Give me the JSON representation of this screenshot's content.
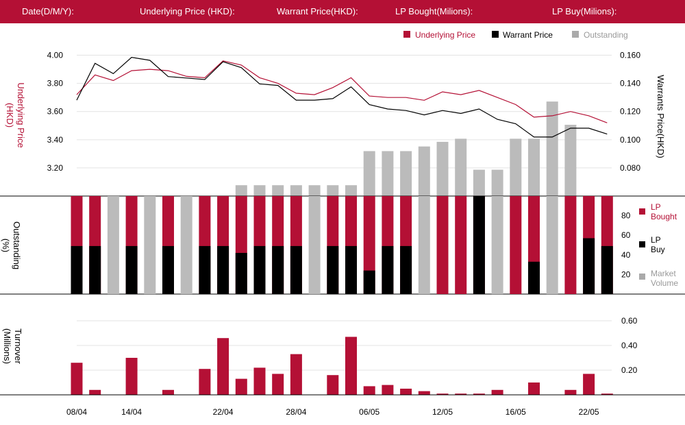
{
  "header": {
    "date_label": "Date(D/M/Y):",
    "underlying_label": "Underlying Price (HKD):",
    "warrant_label": "Warrant  Price(HKD):",
    "lp_bought_label": "LP Bought(Milions):",
    "lp_buy_label": "LP Buy(Milions):"
  },
  "legend_top": {
    "underlying": "Underlying Price",
    "warrant": "Warrant  Price",
    "outstanding": "Outstanding"
  },
  "legend_mid": {
    "lp_bought": [
      "LP",
      "Bought"
    ],
    "lp_buy": [
      "LP",
      "Buy"
    ],
    "market_volume": [
      "Market",
      "Volume"
    ]
  },
  "axis_titles": {
    "underlying": [
      "Underlying Price",
      "(HKD)"
    ],
    "warrants": "Warrants  Price(HKD)",
    "outstanding": [
      "Outstanding",
      "(%)"
    ],
    "turnover": [
      "Turnover",
      "(Millions)"
    ]
  },
  "colors": {
    "header_bg": "#b41035",
    "red": "#b41035",
    "black": "#000000",
    "gray": "#bbbbbb",
    "grid": "#e3e3e3"
  },
  "chart_data": {
    "type": "combo",
    "x_labels": [
      "08/04",
      "14/04",
      "22/04",
      "28/04",
      "06/05",
      "12/05",
      "16/05",
      "22/05"
    ],
    "x_label_positions": [
      0,
      3,
      8,
      12,
      16,
      20,
      24,
      28
    ],
    "n": 30,
    "price_panel": {
      "left_axis": {
        "title": "Underlying Price (HKD)",
        "ticks": [
          "4.00",
          "3.80",
          "3.60",
          "3.40",
          "3.20"
        ],
        "range": [
          3.0,
          4.1
        ]
      },
      "right_axis": {
        "title": "Warrants  Price(HKD)",
        "ticks": [
          "0.160",
          "0.140",
          "0.120",
          "0.100",
          "0.080"
        ],
        "range": [
          0.06,
          0.165
        ]
      },
      "series": [
        {
          "name": "Underlying Price",
          "color": "#b41035",
          "values": [
            3.72,
            3.86,
            3.82,
            3.89,
            3.9,
            3.89,
            3.85,
            3.84,
            3.96,
            3.93,
            3.84,
            3.8,
            3.73,
            3.72,
            3.77,
            3.84,
            3.71,
            3.7,
            3.7,
            3.68,
            3.74,
            3.72,
            3.75,
            3.7,
            3.65,
            3.56,
            3.57,
            3.6,
            3.57,
            3.52
          ]
        },
        {
          "name": "Warrant  Price",
          "color": "#000000",
          "values": [
            0.125,
            0.15,
            0.143,
            0.154,
            0.152,
            0.141,
            0.14,
            0.139,
            0.151,
            0.147,
            0.136,
            0.135,
            0.125,
            0.125,
            0.126,
            0.134,
            0.122,
            0.119,
            0.118,
            0.115,
            0.118,
            0.116,
            0.119,
            0.112,
            0.109,
            0.1,
            0.1,
            0.106,
            0.106,
            0.102
          ]
        }
      ],
      "outstanding_pct": [
        0,
        0,
        0,
        0,
        0,
        0,
        0,
        0,
        0,
        7,
        7,
        7,
        7,
        7,
        7,
        7,
        29,
        29,
        29,
        32,
        35,
        37,
        17,
        17,
        37,
        37,
        61,
        46,
        0,
        0
      ]
    },
    "outstanding_panel": {
      "y_ticks": [
        80,
        60,
        40,
        20
      ],
      "range": [
        0,
        100
      ],
      "lp_bought_pct": [
        100,
        100,
        0,
        100,
        0,
        100,
        0,
        100,
        100,
        100,
        100,
        100,
        100,
        0,
        100,
        100,
        100,
        100,
        100,
        0,
        100,
        100,
        100,
        0,
        100,
        100,
        0,
        100,
        100,
        100
      ],
      "lp_buy_pct": [
        49,
        49,
        0,
        49,
        0,
        49,
        0,
        49,
        49,
        42,
        49,
        49,
        49,
        0,
        49,
        49,
        24,
        49,
        49,
        0,
        0,
        0,
        100,
        0,
        0,
        33,
        0,
        0,
        57,
        49
      ],
      "market_volume_pct": [
        0,
        0,
        100,
        0,
        100,
        0,
        100,
        0,
        0,
        0,
        0,
        0,
        0,
        100,
        0,
        0,
        0,
        0,
        0,
        100,
        0,
        0,
        0,
        100,
        0,
        0,
        100,
        0,
        0,
        0
      ]
    },
    "turnover_panel": {
      "y_ticks": [
        "0.60",
        "0.40",
        "0.20"
      ],
      "range": [
        0,
        0.7
      ],
      "values": [
        0.26,
        0.04,
        0,
        0.3,
        0,
        0.04,
        0,
        0.21,
        0.46,
        0.13,
        0.22,
        0.17,
        0.33,
        0,
        0.16,
        0.47,
        0.07,
        0.08,
        0.05,
        0.03,
        0.01,
        0.01,
        0.01,
        0.04,
        0,
        0.1,
        0,
        0.04,
        0.17,
        0.01
      ]
    }
  }
}
